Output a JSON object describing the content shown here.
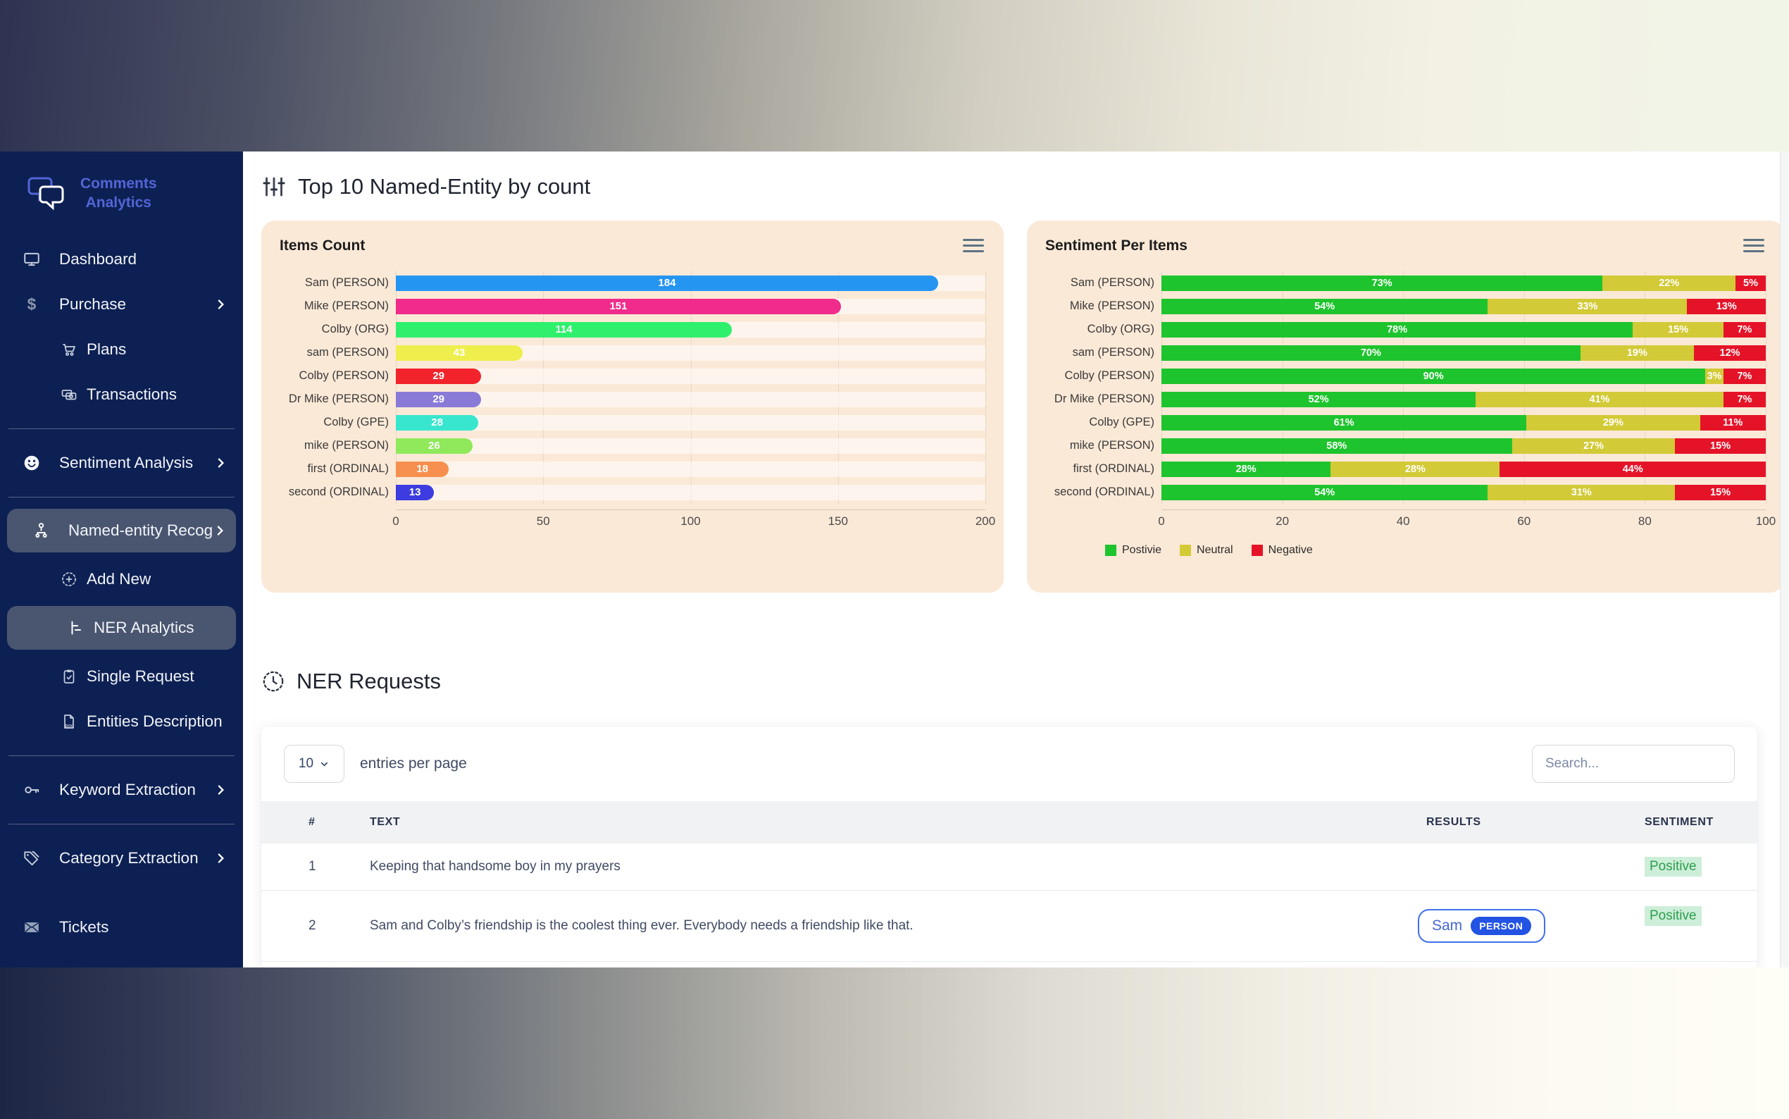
{
  "sidebar": {
    "logo": {
      "line1": "Comments",
      "line2": "Analytics"
    },
    "items": [
      {
        "label": "Dashboard"
      },
      {
        "label": "Purchase"
      },
      {
        "label": "Plans"
      },
      {
        "label": "Transactions"
      },
      {
        "label": "Sentiment Analysis"
      },
      {
        "label": "Named-entity Recog"
      },
      {
        "label": "Add New"
      },
      {
        "label": "NER Analytics"
      },
      {
        "label": "Single Request"
      },
      {
        "label": "Entities Description"
      },
      {
        "label": "Keyword Extraction"
      },
      {
        "label": "Category Extraction"
      },
      {
        "label": "Tickets"
      }
    ]
  },
  "header": {
    "title": "Top 10 Named-Entity by count"
  },
  "colors": {
    "sidebar_bg": "#0d2053",
    "active_item_bg": "#4a5670",
    "panel_bg": "#fbe9d7",
    "brand": "#5265d6",
    "positive_text": "#2e9e4f",
    "positive_bg": "#cdeed8",
    "chip_blue": "#2353e3"
  },
  "chart_data": [
    {
      "type": "bar",
      "orientation": "horizontal",
      "title": "Items Count",
      "categories": [
        "Sam (PERSON)",
        "Mike (PERSON)",
        "Colby (ORG)",
        "sam (PERSON)",
        "Colby (PERSON)",
        "Dr Mike (PERSON)",
        "Colby (GPE)",
        "mike (PERSON)",
        "first (ORDINAL)",
        "second (ORDINAL)"
      ],
      "values": [
        184,
        151,
        114,
        43,
        29,
        29,
        28,
        26,
        18,
        13
      ],
      "colors": [
        "#2595f2",
        "#f02b8b",
        "#2ff06d",
        "#eeee4d",
        "#f2232b",
        "#8a7ad8",
        "#38e6cf",
        "#8fe95a",
        "#f78f4e",
        "#3c3ce0"
      ],
      "xlabel": "",
      "ylabel": "",
      "xlim": [
        0,
        200
      ],
      "xticks": [
        0,
        50,
        100,
        150,
        200
      ],
      "grid": true
    },
    {
      "type": "bar-stacked",
      "orientation": "horizontal",
      "title": "Sentiment Per Items",
      "categories": [
        "Sam (PERSON)",
        "Mike (PERSON)",
        "Colby (ORG)",
        "sam (PERSON)",
        "Colby (PERSON)",
        "Dr Mike (PERSON)",
        "Colby (GPE)",
        "mike (PERSON)",
        "first (ORDINAL)",
        "second (ORDINAL)"
      ],
      "series": [
        {
          "name": "Postivie",
          "color": "#1ec42d",
          "values": [
            73,
            54,
            78,
            70,
            90,
            52,
            61,
            58,
            28,
            54
          ]
        },
        {
          "name": "Neutral",
          "color": "#d2ca37",
          "values": [
            22,
            33,
            15,
            19,
            3,
            41,
            29,
            27,
            28,
            31
          ]
        },
        {
          "name": "Negative",
          "color": "#e51328",
          "values": [
            5,
            13,
            7,
            12,
            7,
            7,
            11,
            15,
            44,
            15
          ]
        }
      ],
      "value_suffix": "%",
      "xlabel": "",
      "ylabel": "",
      "xlim": [
        0,
        100
      ],
      "xticks": [
        0,
        20,
        40,
        60,
        80,
        100
      ],
      "grid": true,
      "legend_position": "bottom-left"
    }
  ],
  "ner": {
    "title": "NER Requests",
    "entries_value": "10",
    "entries_label": "entries per page",
    "search_placeholder": "Search..."
  },
  "table": {
    "headers": {
      "num": "#",
      "text": "TEXT",
      "results": "RESULTS",
      "sentiment": "SENTIMENT"
    },
    "rows": [
      {
        "num": "1",
        "text": "Keeping that handsome boy in my prayers",
        "sentiment": "Positive"
      },
      {
        "num": "2",
        "text": "Sam and Colby’s friendship is the coolest thing ever. Everybody needs a friendship like that.",
        "result_text": "Sam",
        "result_tag": "PERSON",
        "sentiment": "Positive"
      }
    ]
  }
}
